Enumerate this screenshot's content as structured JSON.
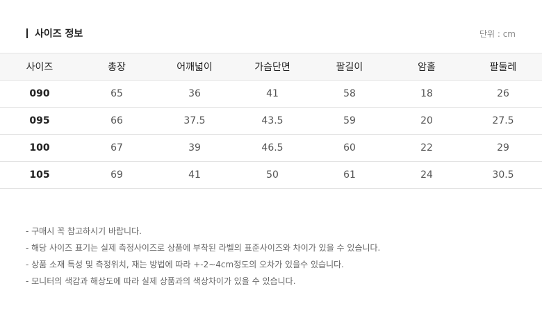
{
  "header": {
    "title": "사이즈 정보",
    "unit": "단위 : cm"
  },
  "table": {
    "columns": [
      "사이즈",
      "총장",
      "어깨넓이",
      "가슴단면",
      "팔길이",
      "암홀",
      "팔둘레"
    ],
    "rows": [
      [
        "090",
        "65",
        "36",
        "41",
        "58",
        "18",
        "26"
      ],
      [
        "095",
        "66",
        "37.5",
        "43.5",
        "59",
        "20",
        "27.5"
      ],
      [
        "100",
        "67",
        "39",
        "46.5",
        "60",
        "22",
        "29"
      ],
      [
        "105",
        "69",
        "41",
        "50",
        "61",
        "24",
        "30.5"
      ]
    ]
  },
  "notes": [
    "- 구매시 꼭 참고하시기 바랍니다.",
    "- 해당 사이즈 표기는 실제 측정사이즈로 상품에 부착된 라벨의 표준사이즈와 차이가 있을 수 있습니다.",
    "- 상품 소재 특성 및 측정위치, 재는 방법에 따라 +-2~4cm정도의 오차가 있을수 있습니다.",
    "- 모니터의 색감과 해상도에 따라 실제 상품과의 색상차이가 있을 수 있습니다."
  ]
}
